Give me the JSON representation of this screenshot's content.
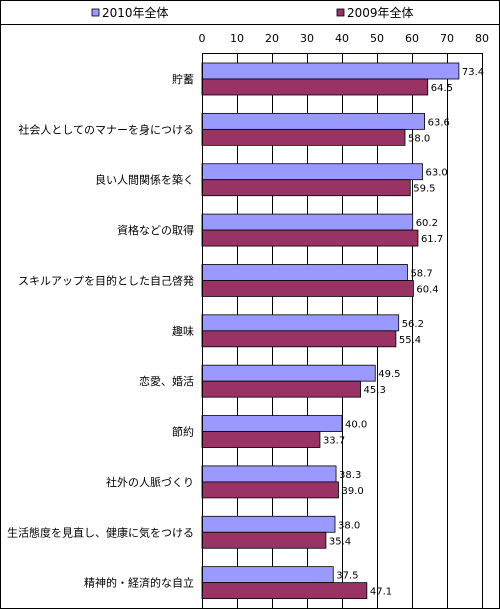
{
  "chart_data": {
    "type": "bar",
    "orientation": "horizontal",
    "categories": [
      "貯蓄",
      "社会人としてのマナーを身につける",
      "良い人間関係を築く",
      "資格などの取得",
      "スキルアップを目的とした自己啓発",
      "趣味",
      "恋愛、婚活",
      "節約",
      "社外の人脈づくり",
      "生活態度を見直し、健康に気をつける",
      "精神的・経済的な自立"
    ],
    "series": [
      {
        "name": "2010年全体",
        "color": "#9999ff",
        "values": [
          73.4,
          63.6,
          63.0,
          60.2,
          58.7,
          56.2,
          49.5,
          40.0,
          38.3,
          38.0,
          37.5
        ]
      },
      {
        "name": "2009年全体",
        "color": "#993366",
        "values": [
          64.5,
          58.0,
          59.5,
          61.7,
          60.4,
          55.4,
          45.3,
          33.7,
          39.0,
          35.4,
          47.1
        ]
      }
    ],
    "xlim": [
      0,
      80
    ],
    "ticks": [
      "0",
      "10",
      "20",
      "30",
      "40",
      "50",
      "60",
      "70",
      "80"
    ],
    "value_labels": [
      [
        "73.4",
        "63.6",
        "63.0",
        "60.2",
        "58.7",
        "56.2",
        "49.5",
        "40.0",
        "38.3",
        "38.0",
        "37.5"
      ],
      [
        "64.5",
        "58.0",
        "59.5",
        "61.7",
        "60.4",
        "55.4",
        "45.3",
        "33.7",
        "39.0",
        "35.4",
        "47.1"
      ]
    ],
    "grid": true,
    "axis_position": "top",
    "legend_position": "top"
  }
}
